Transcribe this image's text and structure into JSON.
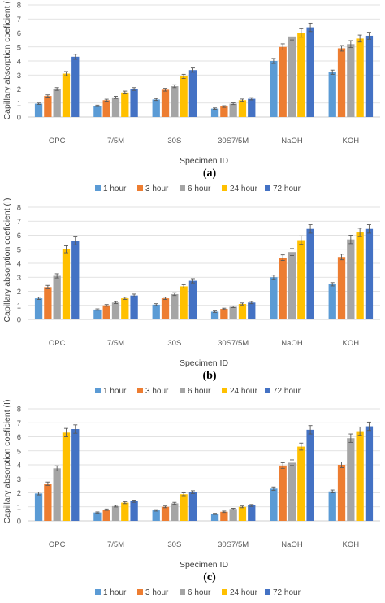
{
  "chart_data": [
    {
      "type": "bar",
      "panel_label": "(a)",
      "xlabel": "Specimen ID",
      "ylabel": "Capillary absorption coeficient (I)",
      "ylim": [
        0,
        8
      ],
      "yticks": [
        0,
        1,
        2,
        3,
        4,
        5,
        6,
        7,
        8
      ],
      "grid": true,
      "legend_position": "bottom",
      "error_bars": true,
      "categories": [
        "OPC",
        "7/5M",
        "30S",
        "30S7/5M",
        "NaOH",
        "KOH"
      ],
      "series": [
        {
          "name": "1 hour",
          "color": "#5b9bd5",
          "values": [
            0.95,
            0.8,
            1.25,
            0.6,
            4.0,
            3.2
          ],
          "errors": [
            0.05,
            0.05,
            0.07,
            0.05,
            0.18,
            0.15
          ]
        },
        {
          "name": "3 hour",
          "color": "#ed7d31",
          "values": [
            1.5,
            1.2,
            1.95,
            0.75,
            5.0,
            4.9
          ],
          "errors": [
            0.08,
            0.07,
            0.1,
            0.06,
            0.22,
            0.2
          ]
        },
        {
          "name": "6 hour",
          "color": "#a5a5a5",
          "values": [
            2.0,
            1.4,
            2.2,
            0.95,
            5.75,
            5.2
          ],
          "errors": [
            0.1,
            0.08,
            0.1,
            0.06,
            0.25,
            0.25
          ]
        },
        {
          "name": "24 hour",
          "color": "#ffc000",
          "values": [
            3.1,
            1.75,
            2.9,
            1.2,
            6.0,
            5.6
          ],
          "errors": [
            0.15,
            0.1,
            0.15,
            0.08,
            0.3,
            0.25
          ]
        },
        {
          "name": "72 hour",
          "color": "#4472c4",
          "values": [
            4.3,
            2.0,
            3.35,
            1.3,
            6.4,
            5.8
          ],
          "errors": [
            0.18,
            0.1,
            0.15,
            0.08,
            0.3,
            0.25
          ]
        }
      ]
    },
    {
      "type": "bar",
      "panel_label": "(b)",
      "xlabel": "Specimen ID",
      "ylabel": "Capillary absorption coeficient (I)",
      "ylim": [
        0,
        8
      ],
      "yticks": [
        0,
        1,
        2,
        3,
        4,
        5,
        6,
        7,
        8
      ],
      "grid": true,
      "legend_position": "bottom",
      "error_bars": true,
      "categories": [
        "OPC",
        "7/5M",
        "30S",
        "30S7/5M",
        "NaOH",
        "KOH"
      ],
      "series": [
        {
          "name": "1 hour",
          "color": "#5b9bd5",
          "values": [
            1.5,
            0.7,
            1.05,
            0.55,
            3.0,
            2.5
          ],
          "errors": [
            0.08,
            0.05,
            0.07,
            0.05,
            0.15,
            0.12
          ]
        },
        {
          "name": "3 hour",
          "color": "#ed7d31",
          "values": [
            2.3,
            1.0,
            1.5,
            0.75,
            4.4,
            4.45
          ],
          "errors": [
            0.12,
            0.06,
            0.08,
            0.05,
            0.2,
            0.2
          ]
        },
        {
          "name": "6 hour",
          "color": "#a5a5a5",
          "values": [
            3.1,
            1.2,
            1.8,
            0.9,
            4.8,
            5.7
          ],
          "errors": [
            0.15,
            0.07,
            0.1,
            0.06,
            0.25,
            0.3
          ]
        },
        {
          "name": "24 hour",
          "color": "#ffc000",
          "values": [
            5.0,
            1.5,
            2.35,
            1.1,
            5.65,
            6.2
          ],
          "errors": [
            0.25,
            0.08,
            0.12,
            0.07,
            0.3,
            0.3
          ]
        },
        {
          "name": "72 hour",
          "color": "#4472c4",
          "values": [
            5.6,
            1.7,
            2.75,
            1.2,
            6.45,
            6.45
          ],
          "errors": [
            0.28,
            0.1,
            0.15,
            0.08,
            0.3,
            0.3
          ]
        }
      ]
    },
    {
      "type": "bar",
      "panel_label": "(c)",
      "xlabel": "Specimen ID",
      "ylabel": "Capillary absorption coeficient (I)",
      "ylim": [
        0,
        8
      ],
      "yticks": [
        0,
        1,
        2,
        3,
        4,
        5,
        6,
        7,
        8
      ],
      "grid": true,
      "legend_position": "bottom",
      "error_bars": true,
      "categories": [
        "OPC",
        "7/5M",
        "30S",
        "30S7/5M",
        "NaOH",
        "KOH"
      ],
      "series": [
        {
          "name": "1 hour",
          "color": "#5b9bd5",
          "values": [
            1.95,
            0.6,
            0.75,
            0.5,
            2.3,
            2.1
          ],
          "errors": [
            0.1,
            0.04,
            0.05,
            0.04,
            0.12,
            0.1
          ]
        },
        {
          "name": "3 hour",
          "color": "#ed7d31",
          "values": [
            2.65,
            0.8,
            1.0,
            0.65,
            3.95,
            4.0
          ],
          "errors": [
            0.12,
            0.05,
            0.06,
            0.05,
            0.2,
            0.2
          ]
        },
        {
          "name": "6 hour",
          "color": "#a5a5a5",
          "values": [
            3.75,
            1.05,
            1.25,
            0.85,
            4.15,
            5.9
          ],
          "errors": [
            0.18,
            0.06,
            0.07,
            0.05,
            0.2,
            0.3
          ]
        },
        {
          "name": "24 hour",
          "color": "#ffc000",
          "values": [
            6.3,
            1.3,
            1.9,
            1.0,
            5.3,
            6.4
          ],
          "errors": [
            0.3,
            0.07,
            0.1,
            0.06,
            0.25,
            0.3
          ]
        },
        {
          "name": "72 hour",
          "color": "#4472c4",
          "values": [
            6.55,
            1.4,
            2.05,
            1.1,
            6.5,
            6.75
          ],
          "errors": [
            0.3,
            0.08,
            0.1,
            0.07,
            0.3,
            0.3
          ]
        }
      ]
    }
  ]
}
